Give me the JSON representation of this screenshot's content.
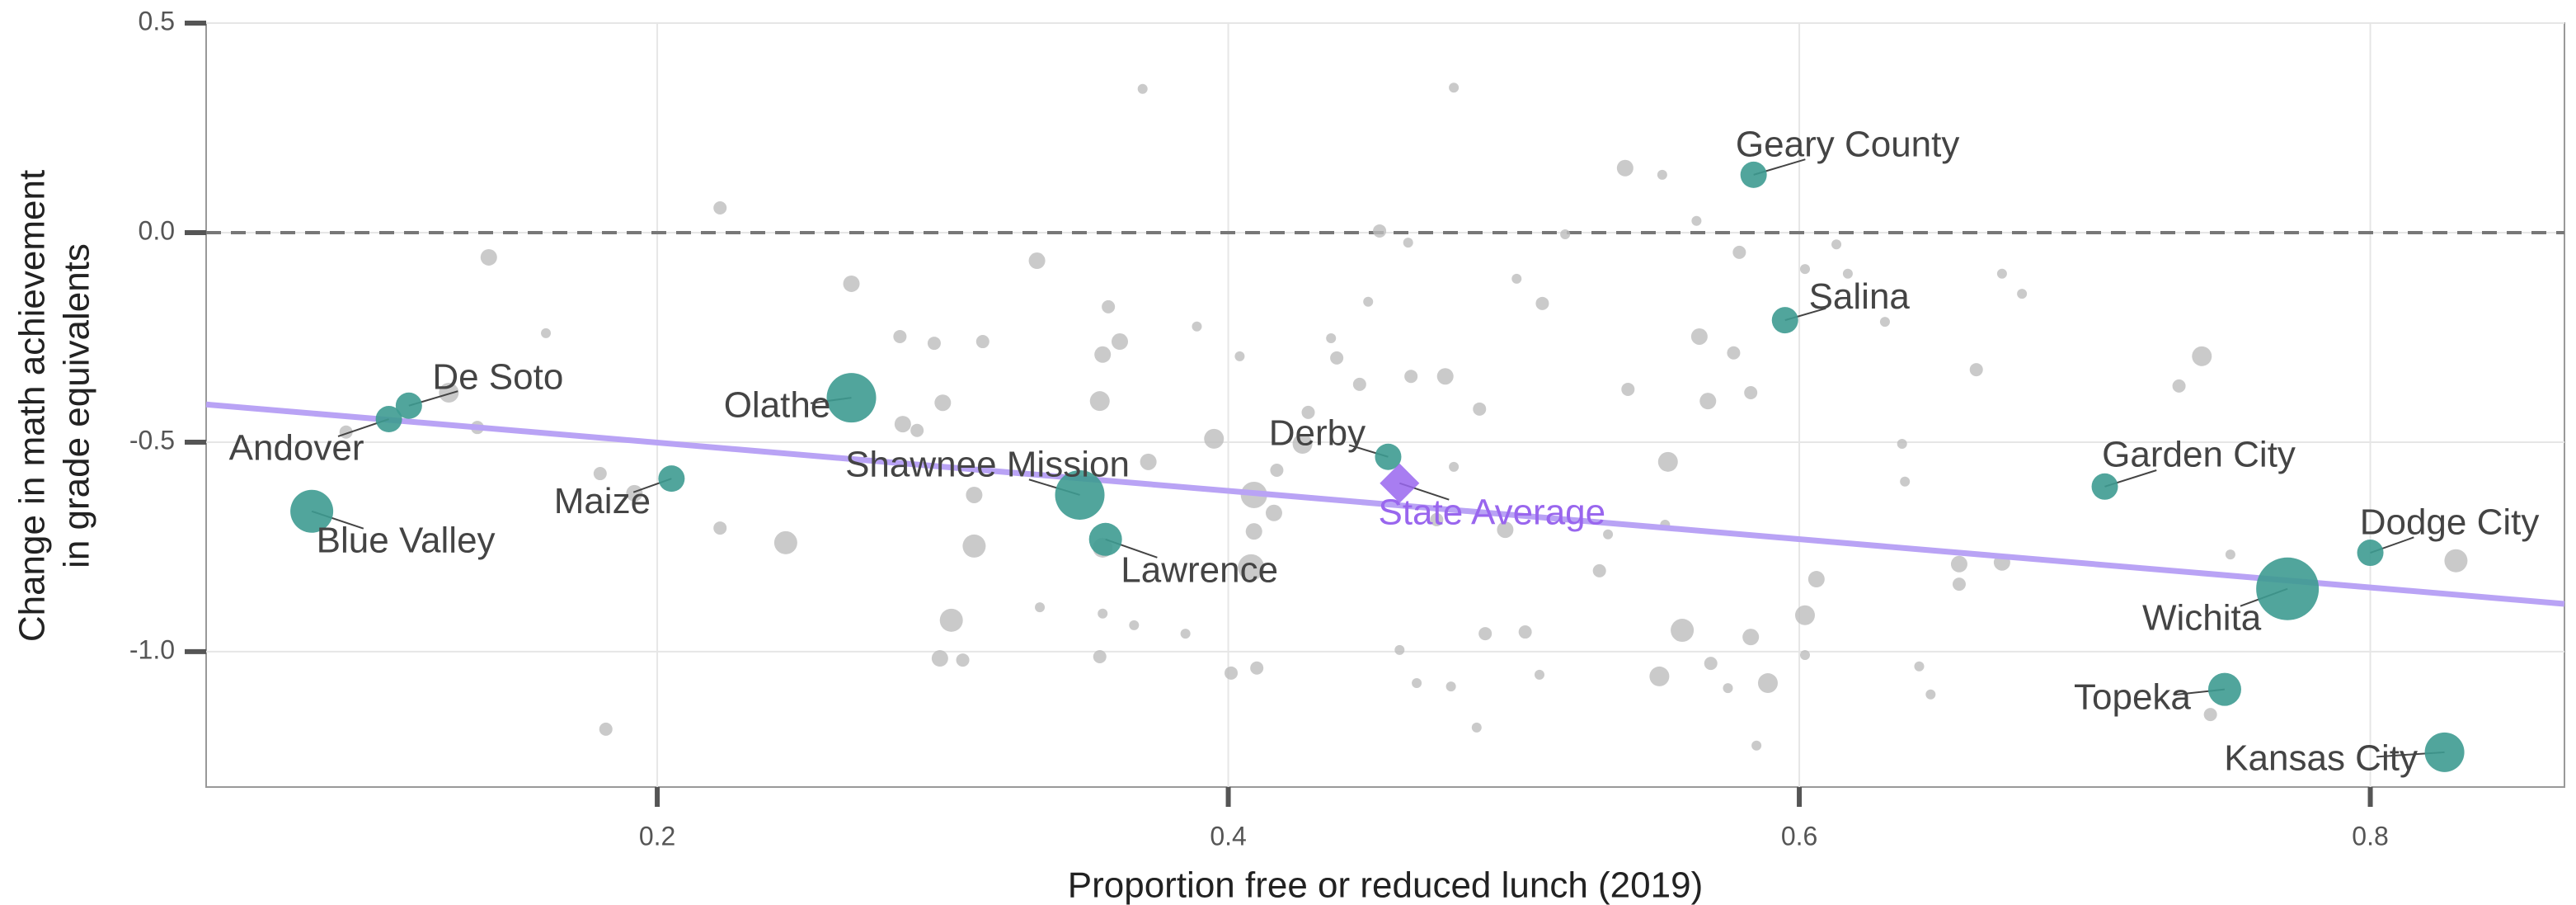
{
  "chart_data": {
    "type": "scatter",
    "x_label": "Proportion free or reduced lunch (2019)",
    "y_label": [
      "Change in math achievement",
      "in grade equivalents"
    ],
    "xlim": [
      0.042,
      0.868
    ],
    "ylim": [
      -1.323,
      0.5
    ],
    "xticks": [
      0.2,
      0.4,
      0.6,
      0.8
    ],
    "yticks": [
      0.5,
      {
        "value": 0,
        "label": "0.0"
      },
      -0.5,
      {
        "value": -1,
        "label": "-1.0"
      }
    ],
    "grid": true,
    "reference_line": {
      "y": 0,
      "color": "#777777",
      "style": "dashed"
    },
    "trend_line": {
      "x": [
        0.042,
        0.868
      ],
      "y": [
        -0.41,
        -0.886
      ],
      "color": "#b9a3f5"
    },
    "state_average": {
      "label": "State Average",
      "x": 0.46,
      "y": -0.598,
      "color": "#9966ee"
    },
    "points": {
      "color": "#bdbdbd",
      "x": [
        0.222,
        0.141,
        0.161,
        0.127,
        0.137,
        0.091,
        0.18,
        0.192,
        0.222,
        0.245,
        0.182,
        0.268,
        0.333,
        0.285,
        0.297,
        0.314,
        0.3,
        0.286,
        0.291,
        0.311,
        0.311,
        0.303,
        0.299,
        0.307,
        0.334,
        0.37,
        0.358,
        0.356,
        0.362,
        0.355,
        0.372,
        0.356,
        0.356,
        0.355,
        0.367,
        0.385,
        0.389,
        0.395,
        0.404,
        0.409,
        0.409,
        0.408,
        0.401,
        0.41,
        0.417,
        0.416,
        0.428,
        0.426,
        0.436,
        0.438,
        0.446,
        0.449,
        0.453,
        0.463,
        0.479,
        0.464,
        0.476,
        0.488,
        0.473,
        0.479,
        0.497,
        0.46,
        0.466,
        0.478,
        0.49,
        0.487,
        0.504,
        0.509,
        0.501,
        0.51,
        0.518,
        0.539,
        0.552,
        0.564,
        0.54,
        0.554,
        0.53,
        0.559,
        0.551,
        0.569,
        0.575,
        0.589,
        0.583,
        0.602,
        0.606,
        0.602,
        0.568,
        0.583,
        0.565,
        0.577,
        0.579,
        0.602,
        0.617,
        0.613,
        0.63,
        0.636,
        0.637,
        0.662,
        0.656,
        0.656,
        0.671,
        0.671,
        0.678,
        0.642,
        0.646,
        0.585,
        0.733,
        0.741,
        0.751,
        0.744,
        0.83,
        0.553,
        0.533
      ],
      "values": [
        0.059,
        -0.059,
        -0.24,
        -0.382,
        -0.465,
        -0.476,
        -0.575,
        -0.622,
        -0.705,
        -0.74,
        -1.185,
        -0.122,
        -0.067,
        -0.248,
        -0.264,
        -0.26,
        -0.406,
        -0.457,
        -0.472,
        -0.626,
        -0.748,
        -0.925,
        -1.016,
        -1.02,
        -0.894,
        0.343,
        -0.177,
        -0.291,
        -0.26,
        -0.402,
        -0.547,
        -0.752,
        -0.909,
        -1.012,
        -0.937,
        -0.957,
        -0.224,
        -0.492,
        -0.295,
        -0.626,
        -0.713,
        -0.799,
        -1.051,
        -1.039,
        -0.567,
        -0.669,
        -0.429,
        -0.504,
        -0.252,
        -0.299,
        -0.362,
        -0.165,
        0.004,
        -0.024,
        0.346,
        -0.343,
        -0.343,
        -0.421,
        -0.685,
        -0.559,
        -0.709,
        -0.996,
        -1.075,
        -1.083,
        -0.957,
        -1.181,
        -0.953,
        -1.055,
        -0.11,
        -0.169,
        -0.004,
        0.154,
        0.138,
        0.028,
        -0.374,
        -0.547,
        -0.807,
        -0.949,
        -1.059,
        -1.028,
        -1.087,
        -1.075,
        -0.965,
        -0.913,
        -0.827,
        -1.008,
        -0.402,
        -0.382,
        -0.248,
        -0.287,
        -0.047,
        -0.087,
        -0.098,
        -0.028,
        -0.213,
        -0.504,
        -0.594,
        -0.327,
        -0.791,
        -0.839,
        -0.787,
        -0.098,
        -0.146,
        -1.035,
        -1.102,
        -1.224,
        -0.366,
        -0.295,
        -0.768,
        -1.15,
        -0.783,
        -0.697,
        -0.72
      ],
      "sizes": [
        4,
        5,
        3,
        6,
        4,
        4,
        4,
        5,
        4,
        7,
        4,
        5,
        5,
        4,
        4,
        4,
        5,
        5,
        4,
        5,
        7,
        7,
        5,
        4,
        3,
        3,
        4,
        5,
        5,
        6,
        5,
        6,
        3,
        4,
        3,
        3,
        3,
        6,
        3,
        8,
        5,
        8,
        4,
        4,
        4,
        5,
        4,
        6,
        3,
        4,
        4,
        3,
        4,
        3,
        3,
        4,
        5,
        4,
        4,
        3,
        5,
        3,
        3,
        3,
        4,
        3,
        4,
        3,
        3,
        4,
        3,
        5,
        3,
        3,
        4,
        6,
        4,
        7,
        6,
        4,
        3,
        6,
        5,
        6,
        5,
        3,
        5,
        4,
        5,
        4,
        4,
        3,
        3,
        3,
        3,
        3,
        3,
        4,
        5,
        4,
        5,
        3,
        3,
        3,
        3,
        3,
        4,
        6,
        3,
        4,
        7,
        3,
        3
      ]
    },
    "highlighted": {
      "color": "#3e9b91",
      "labels": [
        "Geary County",
        "Salina",
        "De Soto",
        "Andover",
        "Blue Valley",
        "Olathe",
        "Maize",
        "Shawnee Mission",
        "Lawrence",
        "Derby",
        "Garden City",
        "Dodge City",
        "Wichita",
        "Topeka",
        "Kansas City"
      ],
      "x": [
        0.584,
        0.595,
        0.113,
        0.106,
        0.079,
        0.268,
        0.205,
        0.348,
        0.357,
        0.456,
        0.707,
        0.8,
        0.771,
        0.749,
        0.826
      ],
      "values": [
        0.138,
        -0.209,
        -0.413,
        -0.445,
        -0.665,
        -0.394,
        -0.587,
        -0.626,
        -0.732,
        -0.535,
        -0.606,
        -0.764,
        -0.85,
        -1.09,
        -1.24
      ],
      "sizes": [
        8,
        8,
        8,
        8,
        13,
        15,
        8,
        15,
        10,
        8,
        8,
        8,
        19,
        10,
        12
      ]
    }
  }
}
